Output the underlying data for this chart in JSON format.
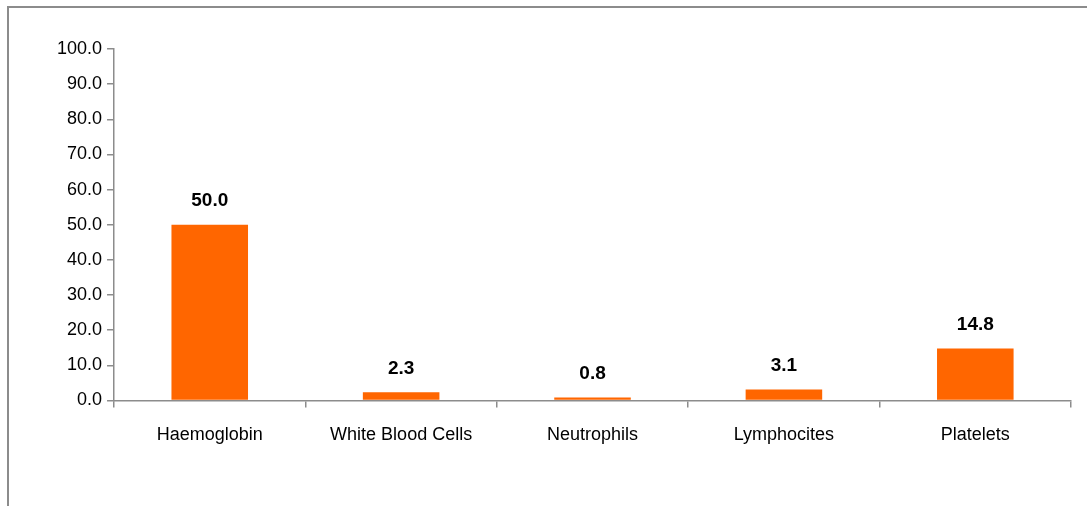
{
  "chart_data": {
    "type": "bar",
    "categories": [
      "Haemoglobin",
      "White Blood Cells",
      "Neutrophils",
      "Lymphocites",
      "Platelets"
    ],
    "values": [
      50.0,
      2.3,
      0.8,
      3.1,
      14.8
    ],
    "color": "#ff6600",
    "value_labels": [
      "50.0",
      "2.3",
      "0.8",
      "3.1",
      "14.8"
    ],
    "ylim": [
      0,
      100
    ],
    "yticks": [
      {
        "value": 0,
        "label": "0.0"
      },
      {
        "value": 10,
        "label": "10.0"
      },
      {
        "value": 20,
        "label": "20.0"
      },
      {
        "value": 30,
        "label": "30.0"
      },
      {
        "value": 40,
        "label": "40.0"
      },
      {
        "value": 50,
        "label": "50.0"
      },
      {
        "value": 60,
        "label": "60.0"
      },
      {
        "value": 70,
        "label": "70.0"
      },
      {
        "value": 80,
        "label": "80.0"
      },
      {
        "value": 90,
        "label": "90.0"
      },
      {
        "value": 100,
        "label": "100.0"
      }
    ],
    "grid": false,
    "legend": false
  }
}
